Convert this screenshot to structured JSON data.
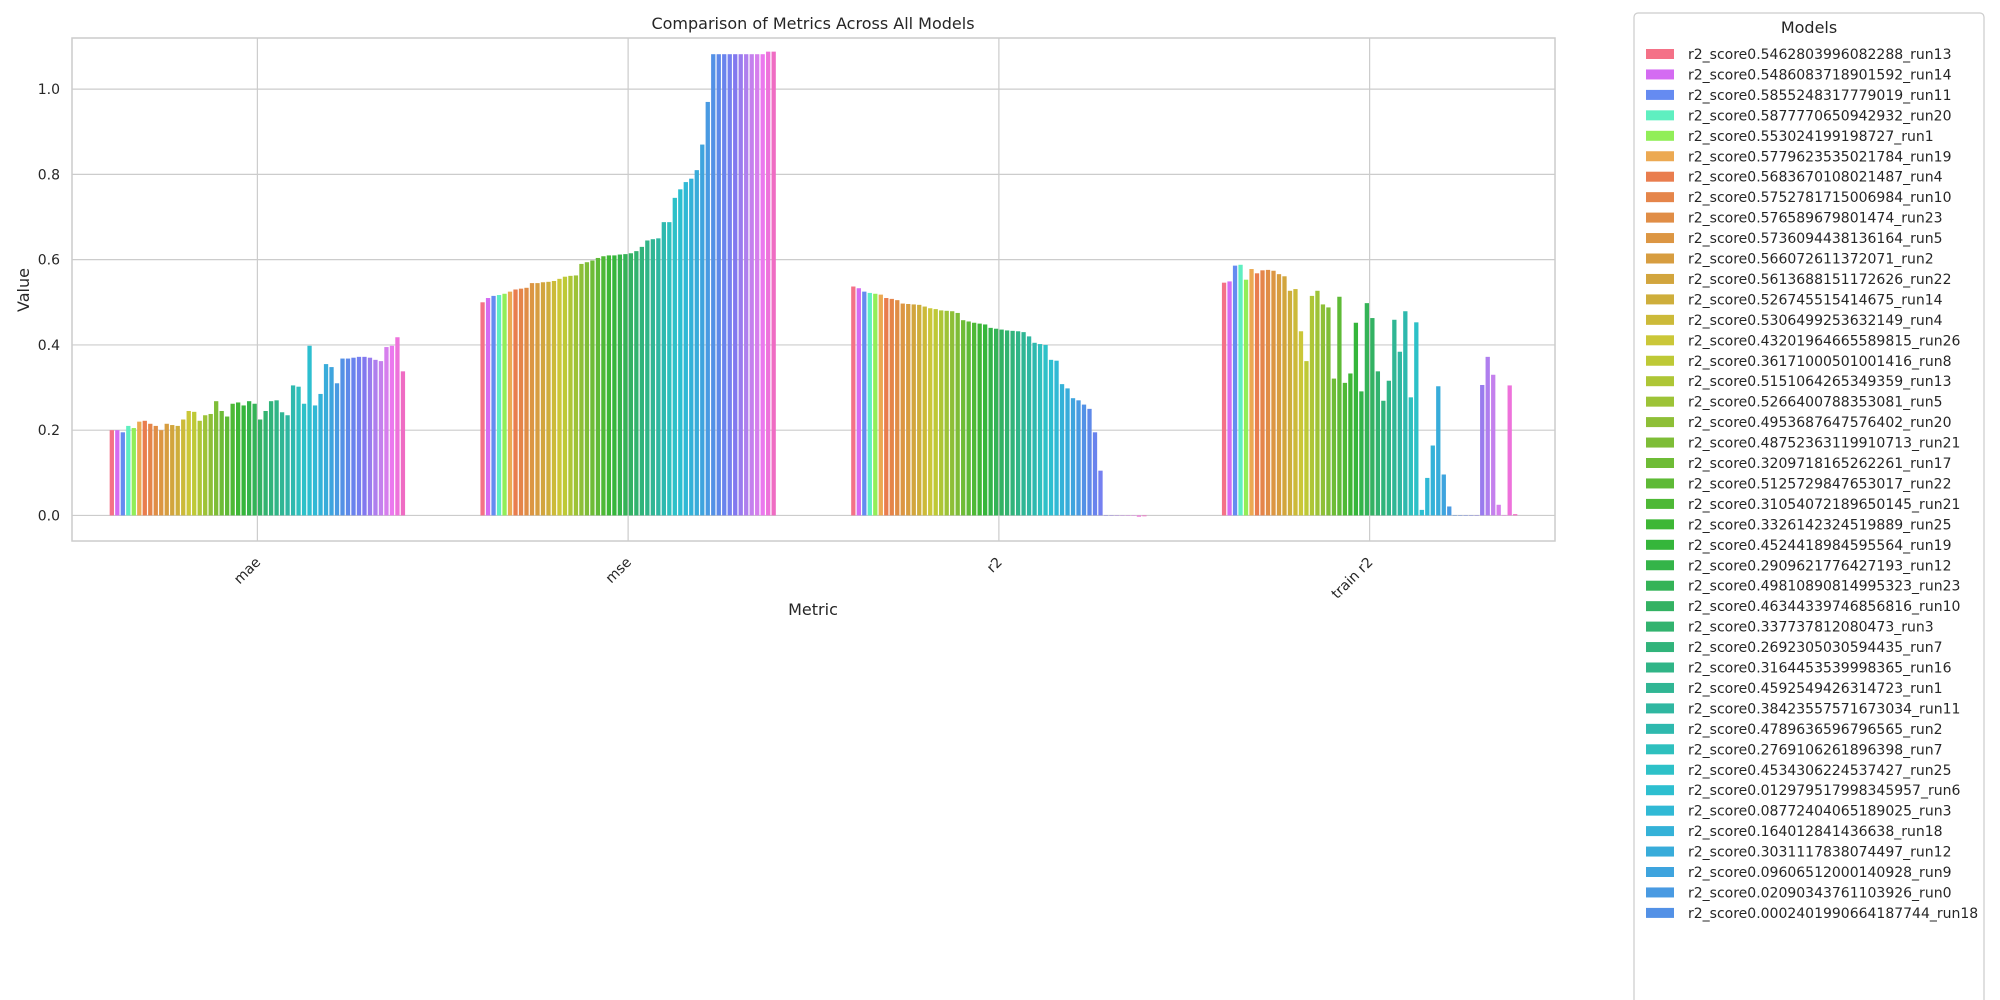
{
  "chart_data": {
    "type": "bar",
    "title": "Comparison of Metrics Across All Models",
    "xlabel": "Metric",
    "ylabel": "Value",
    "ylim": [
      -0.06,
      1.12
    ],
    "yticks": [
      "0.0",
      "0.2",
      "0.4",
      "0.6",
      "0.8",
      "1.0"
    ],
    "grid": true,
    "legend_title": "Models",
    "legend_placement": "outside-right",
    "categories": [
      "mae",
      "mse",
      "r2",
      "train r2"
    ],
    "series": [
      {
        "name": "r2_score0.5462803996082288_run13",
        "values": [
          0.2,
          0.5,
          0.537,
          0.546
        ]
      },
      {
        "name": "r2_score0.5486083718901592_run14",
        "values": [
          0.2,
          0.51,
          0.533,
          0.549
        ]
      },
      {
        "name": "r2_score0.5855248317779019_run11",
        "values": [
          0.195,
          0.515,
          0.525,
          0.586
        ]
      },
      {
        "name": "r2_score0.5877770650942932_run20",
        "values": [
          0.21,
          0.517,
          0.522,
          0.588
        ]
      },
      {
        "name": "r2_score0.553024199198727_run1",
        "values": [
          0.205,
          0.52,
          0.52,
          0.553
        ]
      },
      {
        "name": "r2_score0.5779623535021784_run19",
        "values": [
          0.22,
          0.525,
          0.518,
          0.578
        ]
      },
      {
        "name": "r2_score0.5683670108021487_run4",
        "values": [
          0.222,
          0.53,
          0.51,
          0.568
        ]
      },
      {
        "name": "r2_score0.5752781715006984_run10",
        "values": [
          0.215,
          0.532,
          0.508,
          0.575
        ]
      },
      {
        "name": "r2_score0.576589679801474_run23",
        "values": [
          0.21,
          0.534,
          0.505,
          0.576
        ]
      },
      {
        "name": "r2_score0.5736094438136164_run5",
        "values": [
          0.2,
          0.545,
          0.497,
          0.574
        ]
      },
      {
        "name": "r2_score0.566072611372071_run2",
        "values": [
          0.215,
          0.545,
          0.496,
          0.566
        ]
      },
      {
        "name": "r2_score0.5613688151172626_run22",
        "values": [
          0.212,
          0.547,
          0.495,
          0.561
        ]
      },
      {
        "name": "r2_score0.526745515414675_run14",
        "values": [
          0.21,
          0.548,
          0.494,
          0.527
        ]
      },
      {
        "name": "r2_score0.5306499253632149_run4",
        "values": [
          0.225,
          0.55,
          0.49,
          0.531
        ]
      },
      {
        "name": "r2_score0.43201964665589815_run26",
        "values": [
          0.245,
          0.555,
          0.486,
          0.432
        ]
      },
      {
        "name": "r2_score0.36171000501001416_run8",
        "values": [
          0.243,
          0.56,
          0.484,
          0.362
        ]
      },
      {
        "name": "r2_score0.5151064265349359_run13",
        "values": [
          0.222,
          0.562,
          0.481,
          0.515
        ]
      },
      {
        "name": "r2_score0.5266400788353081_run5",
        "values": [
          0.235,
          0.563,
          0.48,
          0.527
        ]
      },
      {
        "name": "r2_score0.4953687647576402_run20",
        "values": [
          0.238,
          0.59,
          0.479,
          0.495
        ]
      },
      {
        "name": "r2_score0.48752363119910713_run21",
        "values": [
          0.268,
          0.594,
          0.475,
          0.488
        ]
      },
      {
        "name": "r2_score0.3209718165262261_run17",
        "values": [
          0.245,
          0.598,
          0.458,
          0.321
        ]
      },
      {
        "name": "r2_score0.5125729847653017_run22",
        "values": [
          0.232,
          0.604,
          0.455,
          0.513
        ]
      },
      {
        "name": "r2_score0.31054072189650145_run21",
        "values": [
          0.262,
          0.608,
          0.452,
          0.311
        ]
      },
      {
        "name": "r2_score0.3326142324519889_run25",
        "values": [
          0.265,
          0.61,
          0.45,
          0.333
        ]
      },
      {
        "name": "r2_score0.4524418984595564_run19",
        "values": [
          0.258,
          0.61,
          0.448,
          0.452
        ]
      },
      {
        "name": "r2_score0.2909621776427193_run12",
        "values": [
          0.268,
          0.612,
          0.44,
          0.291
        ]
      },
      {
        "name": "r2_score0.49810890814995323_run23",
        "values": [
          0.262,
          0.613,
          0.438,
          0.498
        ]
      },
      {
        "name": "r2_score0.46344339746856816_run10",
        "values": [
          0.225,
          0.615,
          0.436,
          0.463
        ]
      },
      {
        "name": "r2_score0.337737812080473_run3",
        "values": [
          0.245,
          0.62,
          0.434,
          0.338
        ]
      },
      {
        "name": "r2_score0.2692305030594435_run7",
        "values": [
          0.268,
          0.63,
          0.433,
          0.269
        ]
      },
      {
        "name": "r2_score0.3164453539998365_run16",
        "values": [
          0.27,
          0.645,
          0.432,
          0.316
        ]
      },
      {
        "name": "r2_score0.4592549426314723_run1",
        "values": [
          0.242,
          0.648,
          0.43,
          0.459
        ]
      },
      {
        "name": "r2_score0.38423557571673034_run11",
        "values": [
          0.235,
          0.65,
          0.42,
          0.384
        ]
      },
      {
        "name": "r2_score0.4789636596796565_run2",
        "values": [
          0.305,
          0.688,
          0.405,
          0.479
        ]
      },
      {
        "name": "r2_score0.2769106261896398_run7",
        "values": [
          0.302,
          0.688,
          0.402,
          0.277
        ]
      },
      {
        "name": "r2_score0.4534306224537427_run25",
        "values": [
          0.262,
          0.745,
          0.4,
          0.453
        ]
      },
      {
        "name": "r2_score0.012979517998345957_run6",
        "values": [
          0.398,
          0.765,
          0.365,
          0.013
        ]
      },
      {
        "name": "r2_score0.08772404065189025_run3",
        "values": [
          0.258,
          0.782,
          0.363,
          0.088
        ]
      },
      {
        "name": "r2_score0.164012841436638_run18",
        "values": [
          0.285,
          0.79,
          0.308,
          0.164
        ]
      },
      {
        "name": "r2_score0.3031117838074497_run12",
        "values": [
          0.355,
          0.81,
          0.298,
          0.303
        ]
      },
      {
        "name": "r2_score0.09606512000140928_run9",
        "values": [
          0.348,
          0.87,
          0.275,
          0.096
        ]
      },
      {
        "name": "r2_score0.02090343761103926_run0",
        "values": [
          0.31,
          0.97,
          0.27,
          0.021
        ]
      },
      {
        "name": "r2_score0.0002401990664187744_run18",
        "values": [
          0.368,
          1.082,
          0.26,
          0.0002
        ]
      },
      {
        "name": "",
        "values": [
          0.368,
          1.082,
          0.25,
          0.0
        ]
      },
      {
        "name": "",
        "values": [
          0.37,
          1.082,
          0.195,
          0.0
        ]
      },
      {
        "name": "",
        "values": [
          0.372,
          1.082,
          0.105,
          0.0
        ]
      },
      {
        "name": "",
        "values": [
          0.372,
          1.082,
          0.0,
          0.0
        ]
      },
      {
        "name": "",
        "values": [
          0.37,
          1.082,
          0.0,
          0.306
        ]
      },
      {
        "name": "",
        "values": [
          0.365,
          1.082,
          0.0,
          0.372
        ]
      },
      {
        "name": "",
        "values": [
          0.362,
          1.082,
          0.0,
          0.33
        ]
      },
      {
        "name": "",
        "values": [
          0.395,
          1.082,
          0.0,
          0.025
        ]
      },
      {
        "name": "",
        "values": [
          0.398,
          1.082,
          0.0,
          0.0
        ]
      },
      {
        "name": "",
        "values": [
          0.418,
          1.088,
          -0.003,
          0.305
        ]
      },
      {
        "name": "",
        "values": [
          0.338,
          1.088,
          -0.002,
          0.003
        ]
      }
    ]
  }
}
